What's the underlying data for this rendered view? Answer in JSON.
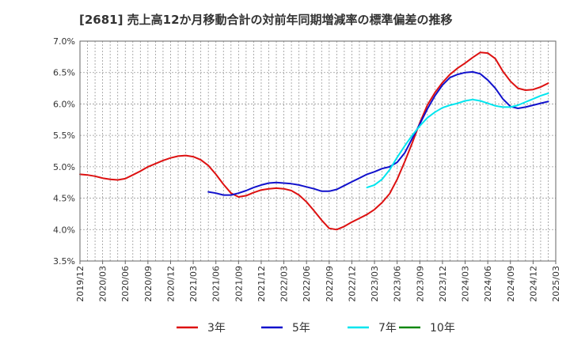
{
  "chart_data": {
    "type": "line",
    "title": "[2681]  売上高12か月移動合計の対前年同期増減率の標準偏差の推移",
    "xlabel": "",
    "ylabel": "",
    "ylim": [
      3.5,
      7.0
    ],
    "xlim": [
      "2019-12",
      "2025-03"
    ],
    "grid": true,
    "legend_position": "bottom",
    "y_ticks": [
      "3.5%",
      "4.0%",
      "4.5%",
      "5.0%",
      "5.5%",
      "6.0%",
      "6.5%",
      "7.0%"
    ],
    "x_ticks": [
      "2019/12",
      "2020/03",
      "2020/06",
      "2020/09",
      "2020/12",
      "2021/03",
      "2021/06",
      "2021/09",
      "2021/12",
      "2022/03",
      "2022/06",
      "2022/09",
      "2022/12",
      "2023/03",
      "2023/06",
      "2023/09",
      "2023/12",
      "2024/03",
      "2024/06",
      "2024/09",
      "2024/12",
      "2025/03"
    ],
    "series": [
      {
        "name": "3年",
        "color": "#dd1111",
        "points": [
          [
            "2019-12",
            4.88
          ],
          [
            "2020-01",
            4.87
          ],
          [
            "2020-02",
            4.85
          ],
          [
            "2020-03",
            4.82
          ],
          [
            "2020-04",
            4.8
          ],
          [
            "2020-05",
            4.79
          ],
          [
            "2020-06",
            4.81
          ],
          [
            "2020-07",
            4.87
          ],
          [
            "2020-08",
            4.93
          ],
          [
            "2020-09",
            5.0
          ],
          [
            "2020-10",
            5.05
          ],
          [
            "2020-11",
            5.1
          ],
          [
            "2020-12",
            5.14
          ],
          [
            "2021-01",
            5.17
          ],
          [
            "2021-02",
            5.18
          ],
          [
            "2021-03",
            5.16
          ],
          [
            "2021-04",
            5.11
          ],
          [
            "2021-05",
            5.02
          ],
          [
            "2021-06",
            4.88
          ],
          [
            "2021-07",
            4.72
          ],
          [
            "2021-08",
            4.58
          ],
          [
            "2021-09",
            4.52
          ],
          [
            "2021-10",
            4.54
          ],
          [
            "2021-11",
            4.59
          ],
          [
            "2021-12",
            4.63
          ],
          [
            "2022-01",
            4.65
          ],
          [
            "2022-02",
            4.66
          ],
          [
            "2022-03",
            4.65
          ],
          [
            "2022-04",
            4.62
          ],
          [
            "2022-05",
            4.55
          ],
          [
            "2022-06",
            4.44
          ],
          [
            "2022-07",
            4.3
          ],
          [
            "2022-08",
            4.15
          ],
          [
            "2022-09",
            4.02
          ],
          [
            "2022-10",
            4.0
          ],
          [
            "2022-11",
            4.05
          ],
          [
            "2022-12",
            4.12
          ],
          [
            "2023-01",
            4.18
          ],
          [
            "2023-02",
            4.24
          ],
          [
            "2023-03",
            4.32
          ],
          [
            "2023-04",
            4.43
          ],
          [
            "2023-05",
            4.57
          ],
          [
            "2023-06",
            4.8
          ],
          [
            "2023-07",
            5.08
          ],
          [
            "2023-08",
            5.38
          ],
          [
            "2023-09",
            5.7
          ],
          [
            "2023-10",
            5.98
          ],
          [
            "2023-11",
            6.18
          ],
          [
            "2023-12",
            6.34
          ],
          [
            "2024-01",
            6.47
          ],
          [
            "2024-02",
            6.57
          ],
          [
            "2024-03",
            6.65
          ],
          [
            "2024-04",
            6.74
          ],
          [
            "2024-05",
            6.82
          ],
          [
            "2024-06",
            6.81
          ],
          [
            "2024-07",
            6.72
          ],
          [
            "2024-08",
            6.52
          ],
          [
            "2024-09",
            6.36
          ],
          [
            "2024-10",
            6.25
          ],
          [
            "2024-11",
            6.22
          ],
          [
            "2024-12",
            6.23
          ],
          [
            "2025-01",
            6.27
          ],
          [
            "2025-02",
            6.33
          ]
        ]
      },
      {
        "name": "5年",
        "color": "#1111cc",
        "points": [
          [
            "2021-05",
            4.6
          ],
          [
            "2021-06",
            4.58
          ],
          [
            "2021-07",
            4.55
          ],
          [
            "2021-08",
            4.55
          ],
          [
            "2021-09",
            4.58
          ],
          [
            "2021-10",
            4.62
          ],
          [
            "2021-11",
            4.67
          ],
          [
            "2021-12",
            4.71
          ],
          [
            "2022-01",
            4.74
          ],
          [
            "2022-02",
            4.75
          ],
          [
            "2022-03",
            4.74
          ],
          [
            "2022-04",
            4.73
          ],
          [
            "2022-05",
            4.71
          ],
          [
            "2022-06",
            4.68
          ],
          [
            "2022-07",
            4.65
          ],
          [
            "2022-08",
            4.61
          ],
          [
            "2022-09",
            4.61
          ],
          [
            "2022-10",
            4.64
          ],
          [
            "2022-11",
            4.7
          ],
          [
            "2022-12",
            4.76
          ],
          [
            "2023-01",
            4.82
          ],
          [
            "2023-02",
            4.88
          ],
          [
            "2023-03",
            4.92
          ],
          [
            "2023-04",
            4.97
          ],
          [
            "2023-05",
            5.0
          ],
          [
            "2023-06",
            5.07
          ],
          [
            "2023-07",
            5.22
          ],
          [
            "2023-08",
            5.45
          ],
          [
            "2023-09",
            5.68
          ],
          [
            "2023-10",
            5.92
          ],
          [
            "2023-11",
            6.13
          ],
          [
            "2023-12",
            6.3
          ],
          [
            "2024-01",
            6.42
          ],
          [
            "2024-02",
            6.47
          ],
          [
            "2024-03",
            6.5
          ],
          [
            "2024-04",
            6.51
          ],
          [
            "2024-05",
            6.48
          ],
          [
            "2024-06",
            6.38
          ],
          [
            "2024-07",
            6.25
          ],
          [
            "2024-08",
            6.08
          ],
          [
            "2024-09",
            5.96
          ],
          [
            "2024-10",
            5.93
          ],
          [
            "2024-11",
            5.95
          ],
          [
            "2024-12",
            5.98
          ],
          [
            "2025-01",
            6.01
          ],
          [
            "2025-02",
            6.04
          ]
        ]
      },
      {
        "name": "7年",
        "color": "#00e5ee",
        "points": [
          [
            "2023-02",
            4.67
          ],
          [
            "2023-03",
            4.71
          ],
          [
            "2023-04",
            4.8
          ],
          [
            "2023-05",
            4.95
          ],
          [
            "2023-06",
            5.15
          ],
          [
            "2023-07",
            5.33
          ],
          [
            "2023-08",
            5.5
          ],
          [
            "2023-09",
            5.65
          ],
          [
            "2023-10",
            5.78
          ],
          [
            "2023-11",
            5.87
          ],
          [
            "2023-12",
            5.94
          ],
          [
            "2024-01",
            5.98
          ],
          [
            "2024-02",
            6.01
          ],
          [
            "2024-03",
            6.05
          ],
          [
            "2024-04",
            6.07
          ],
          [
            "2024-05",
            6.05
          ],
          [
            "2024-06",
            6.01
          ],
          [
            "2024-07",
            5.97
          ],
          [
            "2024-08",
            5.95
          ],
          [
            "2024-09",
            5.95
          ],
          [
            "2024-10",
            5.98
          ],
          [
            "2024-11",
            6.03
          ],
          [
            "2024-12",
            6.08
          ],
          [
            "2025-01",
            6.13
          ],
          [
            "2025-02",
            6.17
          ]
        ]
      },
      {
        "name": "10年",
        "color": "#118811",
        "points": []
      }
    ]
  }
}
